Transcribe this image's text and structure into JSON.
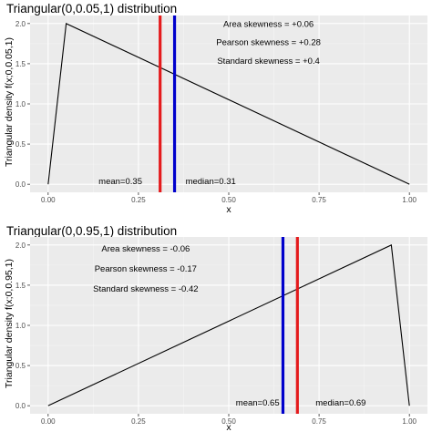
{
  "chart_data": [
    {
      "type": "line",
      "title": "Triangular(0,0.05,1) distribution",
      "xlabel": "x",
      "ylabel": "Triangular density f(x;0,0.05,1)",
      "xlim": [
        -0.05,
        1.05
      ],
      "ylim": [
        -0.1,
        2.1
      ],
      "x_ticks": [
        0.0,
        0.25,
        0.5,
        0.75,
        1.0
      ],
      "x_tick_labels": [
        "0.00",
        "0.25",
        "0.50",
        "0.75",
        "1.00"
      ],
      "y_ticks": [
        0.0,
        0.5,
        1.0,
        1.5,
        2.0
      ],
      "y_tick_labels": [
        "0.0",
        "0.5",
        "1.0",
        "1.5",
        "2.0"
      ],
      "grid": true,
      "series": [
        {
          "x": [
            0.0,
            0.05,
            1.0
          ],
          "y": [
            0.0,
            2.0,
            0.0
          ],
          "color": "#000000"
        }
      ],
      "vlines": [
        {
          "x": 0.31,
          "color": "#e41a1c"
        },
        {
          "x": 0.35,
          "color": "#0000cc"
        }
      ],
      "annotations": [
        {
          "text": "Area skewness = +0.06",
          "x": 0.61,
          "y": 1.96
        },
        {
          "text": "Pearson skewness = +0.28",
          "x": 0.61,
          "y": 1.73
        },
        {
          "text": "Standard skewness = +0.4",
          "x": 0.61,
          "y": 1.5
        },
        {
          "text": "mean=0.35",
          "x": 0.2,
          "y": 0.0
        },
        {
          "text": "median=0.31",
          "x": 0.45,
          "y": 0.0
        }
      ]
    },
    {
      "type": "line",
      "title": "Triangular(0,0.95,1) distribution",
      "xlabel": "x",
      "ylabel": "Triangular density f(x;0,0.95,1)",
      "xlim": [
        -0.05,
        1.05
      ],
      "ylim": [
        -0.1,
        2.1
      ],
      "x_ticks": [
        0.0,
        0.25,
        0.5,
        0.75,
        1.0
      ],
      "x_tick_labels": [
        "0.00",
        "0.25",
        "0.50",
        "0.75",
        "1.00"
      ],
      "y_ticks": [
        0.0,
        0.5,
        1.0,
        1.5,
        2.0
      ],
      "y_tick_labels": [
        "0.0",
        "0.5",
        "1.0",
        "1.5",
        "2.0"
      ],
      "grid": true,
      "series": [
        {
          "x": [
            0.0,
            0.95,
            1.0
          ],
          "y": [
            0.0,
            2.0,
            0.0
          ],
          "color": "#000000"
        }
      ],
      "vlines": [
        {
          "x": 0.65,
          "color": "#0000cc"
        },
        {
          "x": 0.69,
          "color": "#e41a1c"
        }
      ],
      "annotations": [
        {
          "text": "Area skewness = -0.06",
          "x": 0.27,
          "y": 1.92
        },
        {
          "text": "Pearson skewness = -0.17",
          "x": 0.27,
          "y": 1.67
        },
        {
          "text": "Standard skewness = -0.42",
          "x": 0.27,
          "y": 1.42
        },
        {
          "text": "mean=0.65",
          "x": 0.58,
          "y": 0.0
        },
        {
          "text": "median=0.69",
          "x": 0.81,
          "y": 0.0
        }
      ]
    }
  ]
}
